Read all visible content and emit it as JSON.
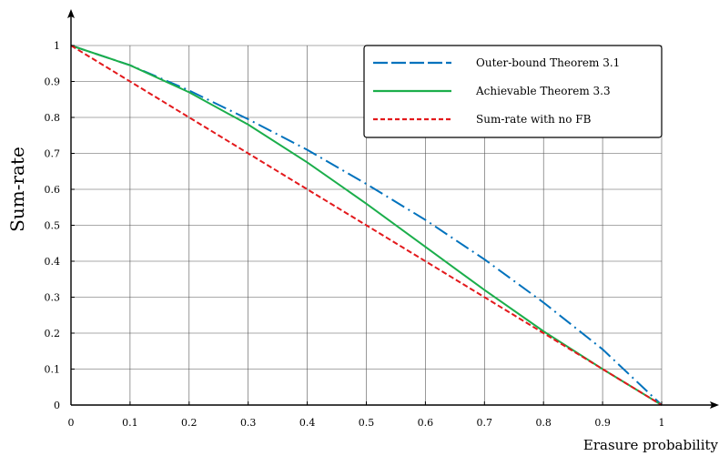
{
  "chart_data": {
    "type": "line",
    "title": "",
    "xlabel": "Erasure probability",
    "ylabel": "Sum-rate",
    "xlim": [
      0,
      1
    ],
    "ylim": [
      0,
      1
    ],
    "grid": true,
    "legend_position": "top-right",
    "x_ticks": [
      "0",
      "0.1",
      "0.2",
      "0.3",
      "0.4",
      "0.5",
      "0.6",
      "0.7",
      "0.8",
      "0.9",
      "1"
    ],
    "y_ticks": [
      "0",
      "0.1",
      "0.2",
      "0.3",
      "0.4",
      "0.5",
      "0.6",
      "0.7",
      "0.8",
      "0.9",
      "1"
    ],
    "series": [
      {
        "name": "Outer-bound Theorem 3.1",
        "color": "#0072BD",
        "style": "dash-dot",
        "x": [
          0,
          0.1,
          0.2,
          0.3,
          0.4,
          0.5,
          0.6,
          0.7,
          0.8,
          0.9,
          1.0
        ],
        "y": [
          1.0,
          0.945,
          0.875,
          0.795,
          0.71,
          0.615,
          0.515,
          0.405,
          0.285,
          0.155,
          0.0
        ]
      },
      {
        "name": "Achievable Theorem 3.3",
        "color": "#1BAE4B",
        "style": "solid",
        "x": [
          0,
          0.1,
          0.2,
          0.3,
          0.4,
          0.5,
          0.6,
          0.7,
          0.8,
          0.9,
          1.0
        ],
        "y": [
          1.0,
          0.945,
          0.87,
          0.78,
          0.675,
          0.56,
          0.44,
          0.32,
          0.205,
          0.1,
          0.0
        ]
      },
      {
        "name": "Sum-rate with no FB",
        "color": "#E3191C",
        "style": "dashed",
        "x": [
          0,
          1
        ],
        "y": [
          1.0,
          0.0
        ]
      }
    ]
  }
}
